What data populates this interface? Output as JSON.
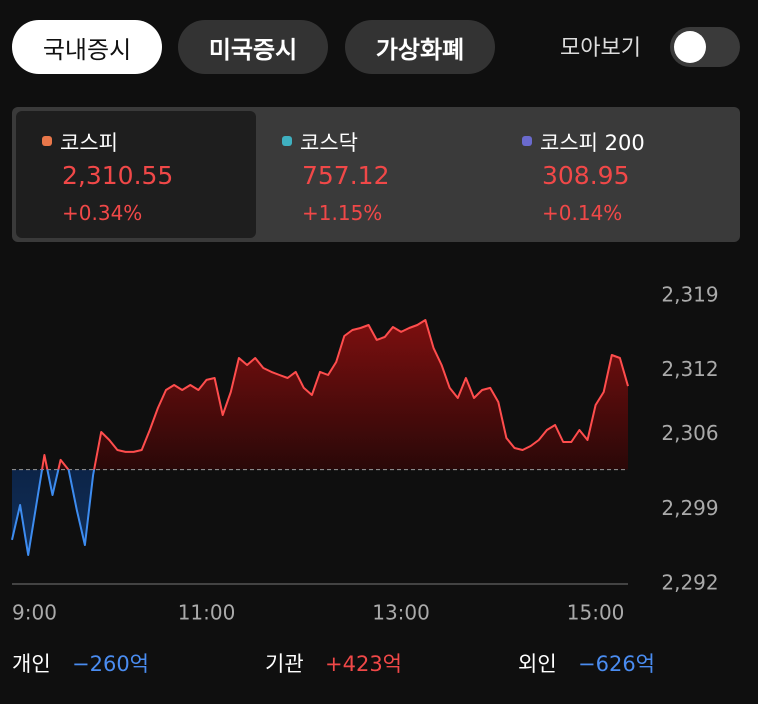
{
  "tabs": [
    "국내증시",
    "미국증시",
    "가상화폐"
  ],
  "toggle_label": "모아보기",
  "indices": [
    {
      "name": "코스피",
      "value": "2,310.55",
      "change": "+0.34%"
    },
    {
      "name": "코스닥",
      "value": "757.12",
      "change": "+1.15%"
    },
    {
      "name": "코스피 200",
      "value": "308.95",
      "change": "+0.14%"
    }
  ],
  "chart_data": {
    "type": "line",
    "color": "#ff4d4d",
    "below_color": "#3d8cf0",
    "x": [
      "9:00",
      "9:05",
      "9:10",
      "9:15",
      "9:20",
      "9:25",
      "9:30",
      "9:35",
      "9:40",
      "9:45",
      "9:50",
      "9:55",
      "10:00",
      "10:05",
      "10:10",
      "10:15",
      "10:20",
      "10:25",
      "10:30",
      "10:35",
      "10:40",
      "10:45",
      "10:50",
      "10:55",
      "11:00",
      "11:05",
      "11:10",
      "11:15",
      "11:20",
      "11:25",
      "11:30",
      "11:35",
      "11:40",
      "11:45",
      "11:50",
      "11:55",
      "12:00",
      "12:05",
      "12:10",
      "12:15",
      "12:20",
      "12:25",
      "12:30",
      "12:35",
      "12:40",
      "12:45",
      "12:50",
      "12:55",
      "13:00",
      "13:05",
      "13:10",
      "13:15",
      "13:20",
      "13:25",
      "13:30",
      "13:35",
      "13:40",
      "13:45",
      "13:50",
      "13:55",
      "14:00",
      "14:05",
      "14:10",
      "14:15",
      "14:20",
      "14:25",
      "14:30",
      "14:35",
      "14:40",
      "14:45",
      "14:50",
      "14:55",
      "15:00",
      "15:05",
      "15:10",
      "15:15",
      "15:20"
    ],
    "values": [
      2296.13,
      2299.41,
      2294.72,
      2299.41,
      2304.09,
      2300.34,
      2303.63,
      2302.69,
      2298.94,
      2295.66,
      2302.22,
      2306.25,
      2305.5,
      2304.56,
      2304.38,
      2304.38,
      2304.56,
      2306.44,
      2308.5,
      2310.19,
      2310.66,
      2310.19,
      2310.66,
      2310.19,
      2311.13,
      2311.31,
      2307.84,
      2310,
      2313.19,
      2312.53,
      2313.19,
      2312.25,
      2311.88,
      2311.59,
      2311.31,
      2311.88,
      2310.38,
      2309.72,
      2311.88,
      2311.59,
      2312.81,
      2315.25,
      2315.81,
      2316,
      2316.28,
      2314.88,
      2315.16,
      2316.09,
      2315.63,
      2316,
      2316.28,
      2316.75,
      2314.13,
      2312.53,
      2310.38,
      2309.44,
      2311.31,
      2309.44,
      2310.19,
      2310.38,
      2309.06,
      2305.69,
      2304.75,
      2304.56,
      2304.94,
      2305.5,
      2306.44,
      2306.91,
      2305.31,
      2305.31,
      2306.44,
      2305.5,
      2308.78,
      2310,
      2313.47,
      2313.19,
      2310.55
    ],
    "baseline": 2302.72,
    "xlim": [
      "9:00",
      "15:20"
    ],
    "xticks": [
      "9:00",
      "11:00",
      "13:00",
      "15:00"
    ],
    "ylim": [
      2292,
      2319
    ],
    "yticks": [
      {
        "value": 2319,
        "label": "2,319"
      },
      {
        "value": 2312,
        "label": "2,312"
      },
      {
        "value": 2306,
        "label": "2,306"
      },
      {
        "value": 2299,
        "label": "2,299"
      },
      {
        "value": 2292,
        "label": "2,292"
      }
    ]
  },
  "flows": [
    {
      "label": "개인",
      "value": "−260억"
    },
    {
      "label": "기관",
      "value": "+423억"
    },
    {
      "label": "외인",
      "value": "−626억"
    }
  ]
}
